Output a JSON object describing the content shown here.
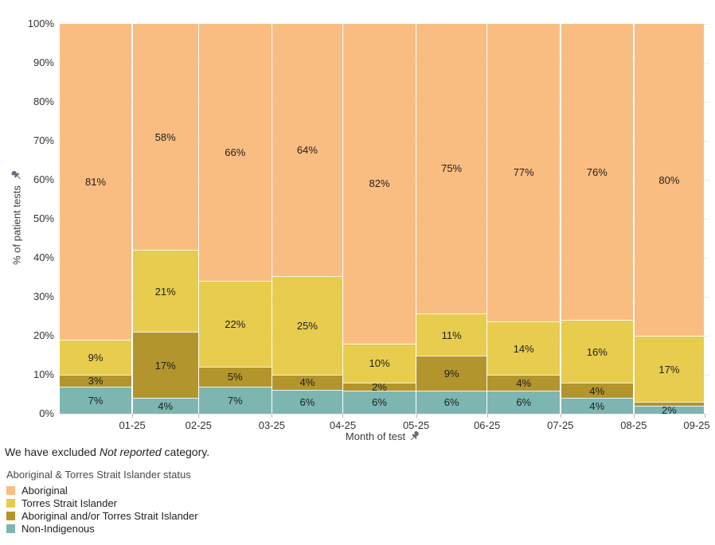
{
  "chart_data": {
    "type": "bar",
    "variant": "100-percent-stacked, bar width proportional to days in month",
    "title": "",
    "xlabel": "Month of test",
    "ylabel": "% of patient tests",
    "categories": [
      "01-25",
      "02-25",
      "03-25",
      "04-25",
      "05-25",
      "06-25",
      "07-25",
      "08-25",
      "09-25"
    ],
    "y_ticks": [
      "0%",
      "10%",
      "20%",
      "30%",
      "40%",
      "50%",
      "60%",
      "70%",
      "80%",
      "90%",
      "100%"
    ],
    "ylim": [
      0,
      100
    ],
    "grid": true,
    "legend_position": "bottom-left",
    "legend_title": "Aboriginal & Torres Strait Islander status",
    "series": [
      {
        "name": "Aboriginal",
        "color": "#FABD81",
        "values": [
          81,
          58,
          66,
          64,
          82,
          75,
          77,
          76,
          80
        ]
      },
      {
        "name": "Torres Strait Islander",
        "color": "#E8CC4D",
        "values": [
          9,
          21,
          22,
          25,
          10,
          11,
          14,
          16,
          17
        ]
      },
      {
        "name": "Aboriginal and/or Torres Strait Islander",
        "color": "#B2952C",
        "values": [
          3,
          17,
          5,
          4,
          2,
          9,
          4,
          4,
          1
        ]
      },
      {
        "name": "Non-Indigenous",
        "color": "#7DB6B0",
        "values": [
          7,
          4,
          7,
          6,
          6,
          6,
          6,
          4,
          2
        ]
      }
    ],
    "label_format": "{v}%",
    "label_min_value": 2,
    "axis_pin_icons": true
  },
  "note": {
    "prefix": "We have excluded ",
    "italic": "Not reported",
    "suffix": " category."
  }
}
